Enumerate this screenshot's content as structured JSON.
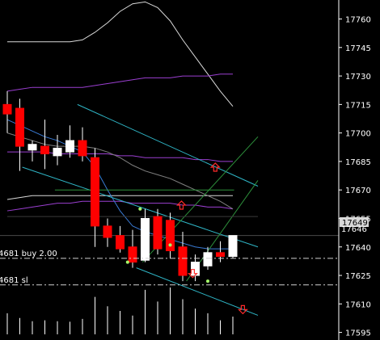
{
  "chart_data": {
    "type": "candlestick",
    "y_ticks": [
      17760,
      17745,
      17730,
      17715,
      17700,
      17685,
      17670,
      17655,
      17640,
      17625,
      17610,
      17595
    ],
    "ylim": [
      17591,
      17770
    ],
    "current_price": 17646,
    "last_price_label": "17646",
    "current_price_badge": "17649",
    "order_lines": [
      {
        "label": "4681 buy 2.00",
        "price": 17634
      },
      {
        "label": "4681 sl",
        "price": 17620
      }
    ],
    "candles": [
      {
        "o": 17715,
        "h": 17722,
        "l": 17700,
        "c": 17710
      },
      {
        "o": 17713,
        "h": 17718,
        "l": 17680,
        "c": 17693
      },
      {
        "o": 17691,
        "h": 17696,
        "l": 17685,
        "c": 17694
      },
      {
        "o": 17693,
        "h": 17707,
        "l": 17681,
        "c": 17689
      },
      {
        "o": 17688,
        "h": 17699,
        "l": 17683,
        "c": 17692
      },
      {
        "o": 17690,
        "h": 17704,
        "l": 17687,
        "c": 17696
      },
      {
        "o": 17696,
        "h": 17703,
        "l": 17685,
        "c": 17688
      },
      {
        "o": 17687,
        "h": 17692,
        "l": 17640,
        "c": 17651
      },
      {
        "o": 17651,
        "h": 17655,
        "l": 17640,
        "c": 17645
      },
      {
        "o": 17646,
        "h": 17651,
        "l": 17637,
        "c": 17639
      },
      {
        "o": 17640,
        "h": 17649,
        "l": 17629,
        "c": 17632
      },
      {
        "o": 17633,
        "h": 17660,
        "l": 17632,
        "c": 17655
      },
      {
        "o": 17656,
        "h": 17660,
        "l": 17636,
        "c": 17639
      },
      {
        "o": 17654,
        "h": 17658,
        "l": 17634,
        "c": 17638
      },
      {
        "o": 17640,
        "h": 17648,
        "l": 17622,
        "c": 17625
      },
      {
        "o": 17625,
        "h": 17636,
        "l": 17622,
        "c": 17632
      },
      {
        "o": 17630,
        "h": 17640,
        "l": 17628,
        "c": 17637
      },
      {
        "o": 17637,
        "h": 17643,
        "l": 17632,
        "c": 17635
      },
      {
        "o": 17635,
        "h": 17646,
        "l": 17634,
        "c": 17646
      }
    ],
    "volume": [
      0.45,
      0.35,
      0.28,
      0.3,
      0.28,
      0.27,
      0.33,
      0.8,
      0.6,
      0.5,
      0.4,
      0.95,
      0.7,
      1.0,
      0.75,
      0.55,
      0.45,
      0.3,
      0.38
    ],
    "moving_averages": [
      {
        "color": "#d9d9d9",
        "values": [
          17748,
          17748,
          17748,
          17748,
          17748,
          17748,
          17749,
          17753,
          17758,
          17764,
          17768,
          17769,
          17766,
          17759,
          17749,
          17740,
          17731,
          17722,
          17714
        ]
      },
      {
        "color": "#9b3fd1",
        "values": [
          17722,
          17723,
          17724,
          17724,
          17724,
          17724,
          17724,
          17725,
          17726,
          17727,
          17728,
          17729,
          17729,
          17729,
          17730,
          17730,
          17730,
          17731,
          17731
        ]
      },
      {
        "color": "#9b3fd1",
        "values": [
          17690,
          17690,
          17690,
          17690,
          17689,
          17689,
          17689,
          17689,
          17689,
          17688,
          17688,
          17687,
          17687,
          17687,
          17687,
          17686,
          17686,
          17685,
          17685
        ]
      },
      {
        "color": "#d9d9d9",
        "values": [
          17665,
          17666,
          17667,
          17667,
          17667,
          17667,
          17667,
          17667,
          17667,
          17667,
          17667,
          17667,
          17667,
          17667,
          17667,
          17667,
          17667,
          17667,
          17667
        ]
      },
      {
        "color": "#9b3fd1",
        "values": [
          17659,
          17660,
          17661,
          17662,
          17663,
          17663,
          17664,
          17664,
          17664,
          17664,
          17663,
          17663,
          17663,
          17663,
          17662,
          17662,
          17661,
          17661,
          17660
        ]
      },
      {
        "color": "#808080",
        "values": [
          17700,
          17698,
          17696,
          17694,
          17693,
          17693,
          17693,
          17692,
          17690,
          17687,
          17683,
          17680,
          17678,
          17676,
          17673,
          17670,
          17667,
          17664,
          17660
        ]
      },
      {
        "color": "#3a7bd5",
        "values": [
          17707,
          17704,
          17701,
          17698,
          17696,
          17693,
          17690,
          17682,
          17670,
          17659,
          17651,
          17648,
          17646,
          17644,
          17642,
          17640,
          17639,
          17639,
          17639
        ]
      }
    ],
    "channel_lines": [
      {
        "color": "#2fb6c7",
        "points": [
          [
            5.6,
            17715
          ],
          [
            20,
            17672
          ]
        ]
      },
      {
        "color": "#2fb6c7",
        "points": [
          [
            1.2,
            17682
          ],
          [
            20,
            17640
          ]
        ]
      },
      {
        "color": "#2fb6c7",
        "points": [
          [
            10.3,
            17629
          ],
          [
            20,
            17604
          ]
        ]
      },
      {
        "color": "#2d8f3b",
        "points": [
          [
            10.8,
            17632
          ],
          [
            20,
            17698
          ]
        ]
      },
      {
        "color": "#2d8f3b",
        "points": [
          [
            14.3,
            17622
          ],
          [
            20,
            17675
          ]
        ]
      },
      {
        "color": "#2d8f3b",
        "points": [
          [
            3.8,
            17670
          ],
          [
            18.1,
            17670
          ]
        ]
      },
      {
        "color": "#3a3a3a",
        "points": [
          [
            0,
            17656
          ],
          [
            20,
            17656
          ]
        ]
      }
    ],
    "markers": [
      {
        "kind": "up",
        "i": 16.6,
        "y": 17682
      },
      {
        "kind": "up",
        "i": 13.9,
        "y": 17662
      },
      {
        "kind": "down",
        "i": 14.8,
        "y": 17626
      },
      {
        "kind": "down",
        "i": 18.8,
        "y": 17607
      }
    ],
    "dots": [
      {
        "i": 10.6,
        "y": 17660
      },
      {
        "i": 13.0,
        "y": 17641
      },
      {
        "i": 9.6,
        "y": 17632
      },
      {
        "i": 16.0,
        "y": 17622
      }
    ]
  }
}
